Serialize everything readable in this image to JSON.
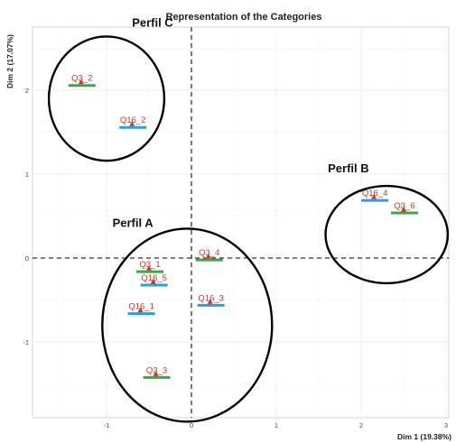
{
  "chart_data": {
    "type": "scatter",
    "title": "Representation of the Categories",
    "xlabel": "Dim 1 (19.38%)",
    "ylabel": "Dim 2 (17.07%)",
    "xlim": [
      -1.9,
      3.05
    ],
    "ylim": [
      -1.95,
      2.7
    ],
    "x_ticks": [
      -1,
      0,
      1,
      2,
      3
    ],
    "y_ticks": [
      -1,
      0,
      1,
      2
    ],
    "grid": true,
    "reference_lines": {
      "x": 0,
      "y": 0,
      "style": "dashed"
    },
    "points": [
      {
        "label": "Q3_2",
        "x": -1.3,
        "y": 2.1,
        "bar_color": "green"
      },
      {
        "label": "Q16_2",
        "x": -0.7,
        "y": 1.6,
        "bar_color": "blue"
      },
      {
        "label": "Q16_4",
        "x": 2.15,
        "y": 0.73,
        "bar_color": "blue"
      },
      {
        "label": "Q3_6",
        "x": 2.5,
        "y": 0.58,
        "bar_color": "green"
      },
      {
        "label": "Q3_1",
        "x": -0.5,
        "y": -0.12,
        "bar_color": "green"
      },
      {
        "label": "Q3_4",
        "x": 0.2,
        "y": 0.02,
        "bar_color": "green"
      },
      {
        "label": "Q16_5",
        "x": -0.45,
        "y": -0.28,
        "bar_color": "blue"
      },
      {
        "label": "Q16_1",
        "x": -0.6,
        "y": -0.62,
        "bar_color": "blue"
      },
      {
        "label": "Q16_3",
        "x": 0.22,
        "y": -0.52,
        "bar_color": "blue"
      },
      {
        "label": "Q3_3",
        "x": -0.42,
        "y": -1.38,
        "bar_color": "green"
      }
    ],
    "groups": [
      {
        "label": "Perfil C",
        "center": [
          -1.0,
          1.9
        ],
        "radius": [
          0.68,
          0.74
        ]
      },
      {
        "label": "Perfil B",
        "center": [
          2.3,
          0.28
        ],
        "radius": [
          0.72,
          0.58
        ]
      },
      {
        "label": "Perfil A",
        "center": [
          -0.05,
          -0.8
        ],
        "radius": [
          1.0,
          1.15
        ]
      }
    ]
  },
  "colors": {
    "point": "#c0392b",
    "green": "#3aa845",
    "blue": "#2a9fd8",
    "grid": "#eeeeee",
    "frame": "#d6d6d6"
  }
}
